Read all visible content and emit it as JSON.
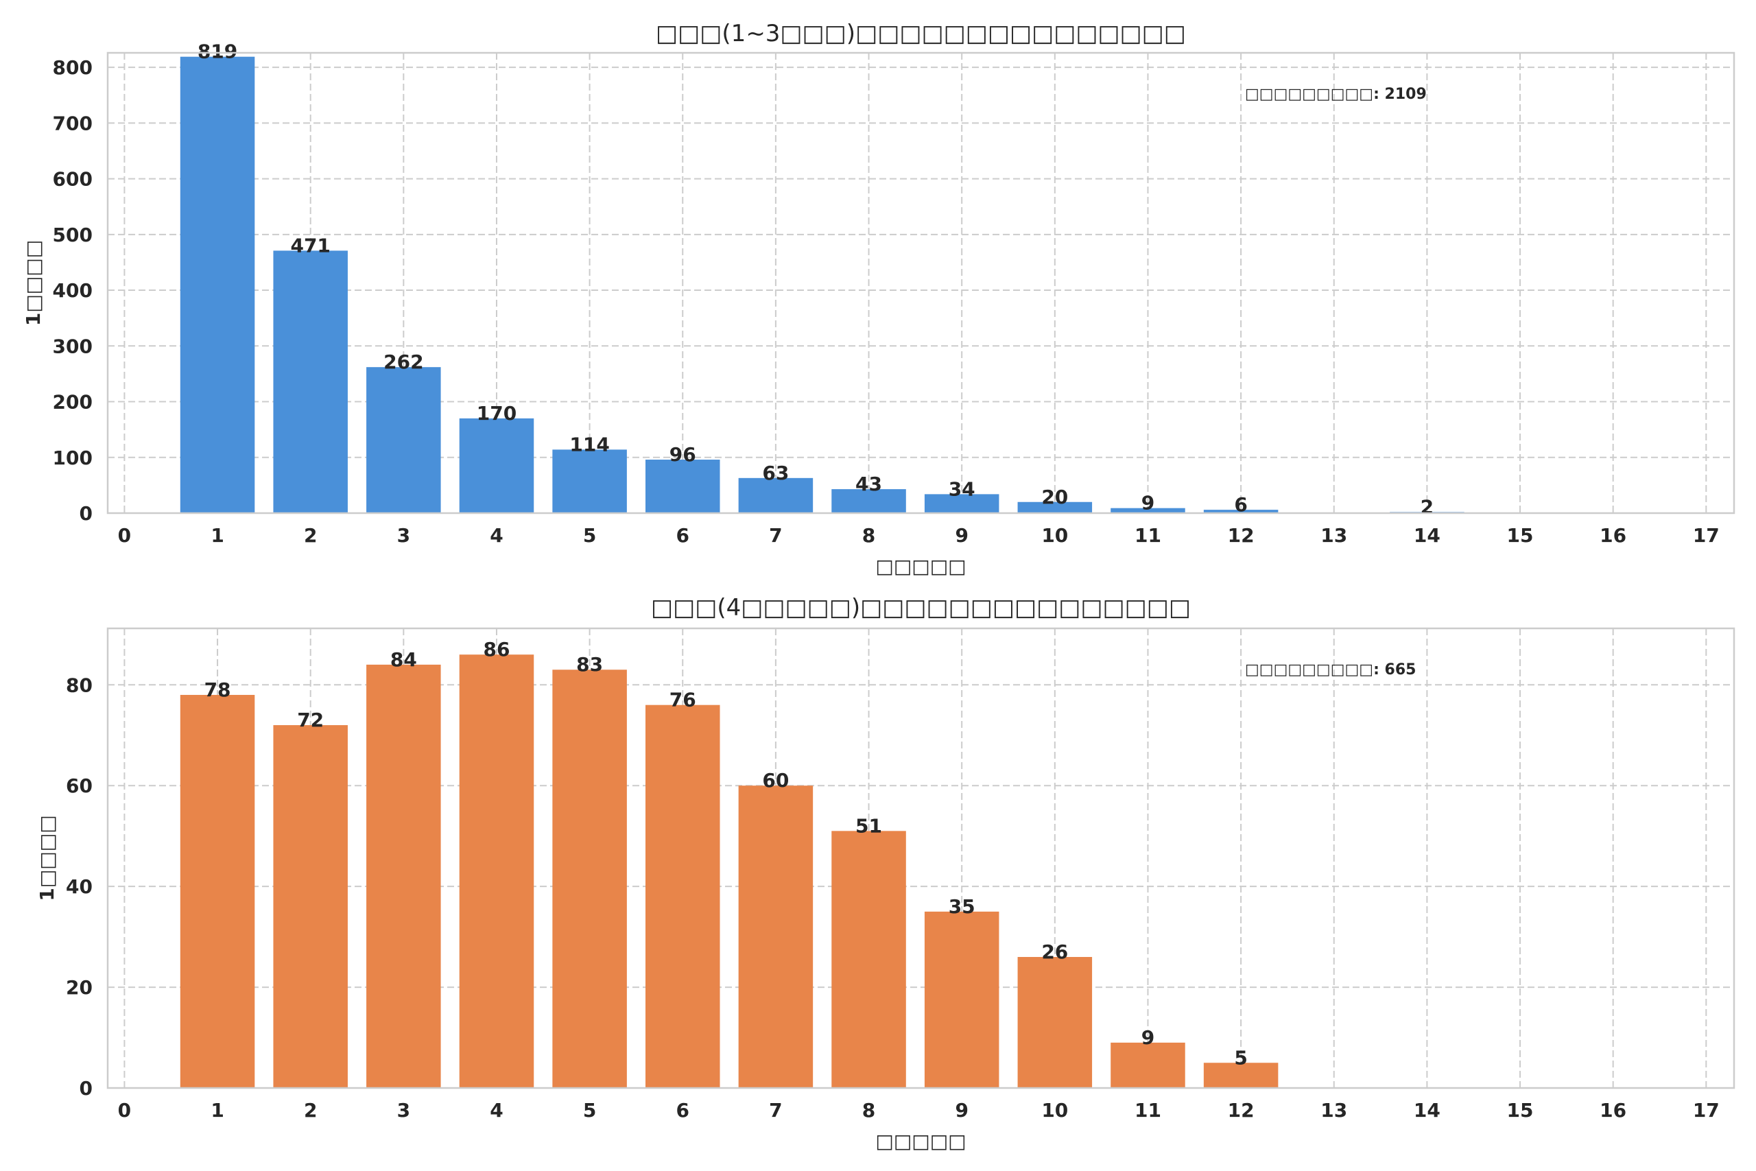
{
  "chart_data": [
    {
      "type": "bar",
      "title": "□□□(1~3□□□)□□□□□□□□□□□□□□□",
      "xlabel": "□□□□□",
      "ylabel": "1□□□□",
      "x": [
        1,
        2,
        3,
        4,
        5,
        6,
        7,
        8,
        9,
        10,
        11,
        12,
        14
      ],
      "values": [
        819,
        471,
        262,
        170,
        114,
        96,
        63,
        43,
        34,
        20,
        9,
        6,
        2
      ],
      "xlim": [
        -0.18,
        17.3
      ],
      "ylim": [
        0,
        826
      ],
      "xticks": [
        0,
        1,
        2,
        3,
        4,
        5,
        6,
        7,
        8,
        9,
        10,
        11,
        12,
        13,
        14,
        15,
        16,
        17
      ],
      "yticks": [
        0,
        100,
        200,
        300,
        400,
        500,
        600,
        700,
        800
      ],
      "annotation": "□□□□□□□□□: 2109",
      "color": "#4a90d9",
      "grid": true
    },
    {
      "type": "bar",
      "title": "□□□(4□□□□□)□□□□□□□□□□□□□□□",
      "xlabel": "□□□□□",
      "ylabel": "1□□□□",
      "x": [
        1,
        2,
        3,
        4,
        5,
        6,
        7,
        8,
        9,
        10,
        11,
        12
      ],
      "values": [
        78,
        72,
        84,
        86,
        83,
        76,
        60,
        51,
        35,
        26,
        9,
        5
      ],
      "xlim": [
        -0.18,
        17.3
      ],
      "ylim": [
        0,
        91.2
      ],
      "xticks": [
        0,
        1,
        2,
        3,
        4,
        5,
        6,
        7,
        8,
        9,
        10,
        11,
        12,
        13,
        14,
        15,
        16,
        17
      ],
      "yticks": [
        0,
        20,
        40,
        60,
        80
      ],
      "annotation": "□□□□□□□□□: 665",
      "color": "#e8854a",
      "grid": true
    }
  ]
}
